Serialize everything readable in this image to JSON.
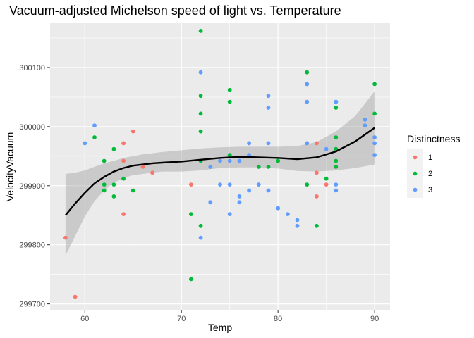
{
  "chart_data": {
    "type": "scatter",
    "title": "Vacuum-adjusted Michelson speed of light vs. Temperature",
    "xlabel": "Temp",
    "ylabel": "VelocityVacuum",
    "xlim": [
      56.4,
      91.6
    ],
    "ylim": [
      299690,
      300175
    ],
    "xticks": [
      60,
      70,
      80,
      90
    ],
    "xtick_labels": [
      "60",
      "70",
      "80",
      "90"
    ],
    "yticks": [
      299700,
      299800,
      299900,
      300000,
      300100
    ],
    "ytick_labels": [
      "299700",
      "299800",
      "299900",
      "300000",
      "300100"
    ],
    "grid": true,
    "legend": {
      "title": "Distinctness",
      "position": "right",
      "entries": [
        {
          "label": "1",
          "color": "#F8766D"
        },
        {
          "label": "2",
          "color": "#00BA38"
        },
        {
          "label": "3",
          "color": "#619CFF"
        }
      ]
    },
    "series": [
      {
        "name": "1",
        "color": "#F8766D",
        "points": [
          [
            58,
            299812
          ],
          [
            59,
            299712
          ],
          [
            64,
            299972
          ],
          [
            64,
            299942
          ],
          [
            64,
            299852
          ],
          [
            65,
            299992
          ],
          [
            66,
            299932
          ],
          [
            67,
            299922
          ],
          [
            71,
            299902
          ],
          [
            84,
            299972
          ],
          [
            84,
            299922
          ],
          [
            84,
            299882
          ],
          [
            85,
            299902
          ]
        ]
      },
      {
        "name": "2",
        "color": "#00BA38",
        "points": [
          [
            61,
            299982
          ],
          [
            62,
            299942
          ],
          [
            62,
            299902
          ],
          [
            62,
            299892
          ],
          [
            63,
            299962
          ],
          [
            63,
            299902
          ],
          [
            63,
            299882
          ],
          [
            64,
            299912
          ],
          [
            65,
            299892
          ],
          [
            71,
            299852
          ],
          [
            71,
            299742
          ],
          [
            72,
            300162
          ],
          [
            72,
            300052
          ],
          [
            72,
            300022
          ],
          [
            72,
            299992
          ],
          [
            72,
            299942
          ],
          [
            72,
            299832
          ],
          [
            75,
            300062
          ],
          [
            75,
            300042
          ],
          [
            75,
            299952
          ],
          [
            78,
            299932
          ],
          [
            79,
            299932
          ],
          [
            80,
            299942
          ],
          [
            83,
            300092
          ],
          [
            83,
            299902
          ],
          [
            84,
            299832
          ],
          [
            85,
            299912
          ],
          [
            86,
            300042
          ],
          [
            86,
            300032
          ],
          [
            86,
            299982
          ],
          [
            86,
            299962
          ],
          [
            86,
            299942
          ],
          [
            86,
            299932
          ],
          [
            90,
            300072
          ],
          [
            90,
            300022
          ]
        ]
      },
      {
        "name": "3",
        "color": "#619CFF",
        "points": [
          [
            60,
            299972
          ],
          [
            61,
            300002
          ],
          [
            72,
            300092
          ],
          [
            72,
            299812
          ],
          [
            73,
            299932
          ],
          [
            73,
            299872
          ],
          [
            74,
            299942
          ],
          [
            74,
            299902
          ],
          [
            75,
            299942
          ],
          [
            75,
            299902
          ],
          [
            75,
            299852
          ],
          [
            76,
            299942
          ],
          [
            76,
            299882
          ],
          [
            76,
            299872
          ],
          [
            77,
            299972
          ],
          [
            77,
            299952
          ],
          [
            77,
            299892
          ],
          [
            78,
            299902
          ],
          [
            79,
            300052
          ],
          [
            79,
            300032
          ],
          [
            79,
            299972
          ],
          [
            79,
            299892
          ],
          [
            80,
            299862
          ],
          [
            81,
            299852
          ],
          [
            82,
            299842
          ],
          [
            82,
            299832
          ],
          [
            83,
            300072
          ],
          [
            83,
            300072
          ],
          [
            83,
            300042
          ],
          [
            83,
            299972
          ],
          [
            85,
            299962
          ],
          [
            86,
            300042
          ],
          [
            86,
            299902
          ],
          [
            86,
            299892
          ],
          [
            89,
            300012
          ],
          [
            89,
            300002
          ],
          [
            90,
            299982
          ],
          [
            90,
            299972
          ],
          [
            90,
            299952
          ]
        ]
      }
    ],
    "smooth": {
      "color": "#000000",
      "points": [
        [
          58,
          299850
        ],
        [
          59,
          299870
        ],
        [
          60,
          299888
        ],
        [
          61,
          299904
        ],
        [
          62,
          299915
        ],
        [
          63,
          299924
        ],
        [
          64,
          299930
        ],
        [
          65,
          299934
        ],
        [
          66,
          299936
        ],
        [
          67,
          299938
        ],
        [
          68,
          299939
        ],
        [
          70,
          299941
        ],
        [
          72,
          299944
        ],
        [
          74,
          299947
        ],
        [
          76,
          299949
        ],
        [
          78,
          299948
        ],
        [
          80,
          299947
        ],
        [
          82,
          299945
        ],
        [
          84,
          299948
        ],
        [
          86,
          299958
        ],
        [
          88,
          299975
        ],
        [
          90,
          299998
        ]
      ],
      "ci_upper": [
        [
          58,
          299920
        ],
        [
          59,
          299922
        ],
        [
          60,
          299926
        ],
        [
          61,
          299932
        ],
        [
          62,
          299938
        ],
        [
          63,
          299942
        ],
        [
          64,
          299947
        ],
        [
          65,
          299950
        ],
        [
          66,
          299953
        ],
        [
          67,
          299955
        ],
        [
          68,
          299957
        ],
        [
          70,
          299960
        ],
        [
          72,
          299963
        ],
        [
          74,
          299965
        ],
        [
          76,
          299966
        ],
        [
          78,
          299966
        ],
        [
          80,
          299966
        ],
        [
          82,
          299967
        ],
        [
          84,
          299974
        ],
        [
          86,
          299992
        ],
        [
          88,
          300018
        ],
        [
          90,
          300060
        ]
      ],
      "ci_lower": [
        [
          58,
          299782
        ],
        [
          59,
          299815
        ],
        [
          60,
          299848
        ],
        [
          61,
          299874
        ],
        [
          62,
          299892
        ],
        [
          63,
          299905
        ],
        [
          64,
          299913
        ],
        [
          65,
          299918
        ],
        [
          66,
          299920
        ],
        [
          67,
          299922
        ],
        [
          68,
          299924
        ],
        [
          70,
          299924
        ],
        [
          72,
          299926
        ],
        [
          74,
          299930
        ],
        [
          76,
          299931
        ],
        [
          78,
          299931
        ],
        [
          80,
          299929
        ],
        [
          82,
          299925
        ],
        [
          84,
          299924
        ],
        [
          86,
          299926
        ],
        [
          88,
          299930
        ],
        [
          90,
          299936
        ]
      ]
    }
  }
}
